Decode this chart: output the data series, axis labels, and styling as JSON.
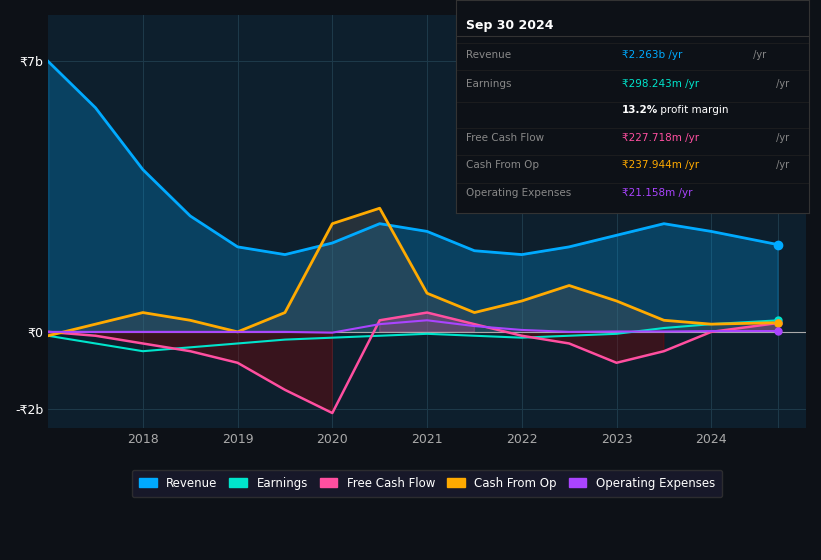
{
  "bg_color": "#0d1117",
  "plot_bg_color": "#0d1f2d",
  "grid_color": "#1e3a4a",
  "title": "Sep 30 2024",
  "ylim": [
    -2500000000.0,
    8000000000.0
  ],
  "yticks": [
    -2000000000.0,
    0,
    7000000000.0
  ],
  "ytick_labels": [
    "-₹2b",
    "₹0",
    "₹7b"
  ],
  "xtick_labels": [
    "2018",
    "2019",
    "2020",
    "2021",
    "2022",
    "2023",
    "2024"
  ],
  "legend_items": [
    {
      "label": "Revenue",
      "color": "#00aaff"
    },
    {
      "label": "Earnings",
      "color": "#00e5cc"
    },
    {
      "label": "Free Cash Flow",
      "color": "#ff4fa0"
    },
    {
      "label": "Cash From Op",
      "color": "#ffaa00"
    },
    {
      "label": "Operating Expenses",
      "color": "#aa44ff"
    }
  ],
  "info_box": {
    "title": "Sep 30 2024",
    "rows": [
      {
        "label": "Revenue",
        "value": "₹2.263b /yr",
        "value_color": "#00aaff"
      },
      {
        "label": "Earnings",
        "value": "₹298.243m /yr",
        "value_color": "#00e5cc"
      },
      {
        "label": "",
        "value": "13.2% profit margin",
        "value_color": "#ffffff",
        "bold_part": "13.2%"
      },
      {
        "label": "Free Cash Flow",
        "value": "₹227.718m /yr",
        "value_color": "#ff4fa0"
      },
      {
        "label": "Cash From Op",
        "value": "₹237.944m /yr",
        "value_color": "#ffaa00"
      },
      {
        "label": "Operating Expenses",
        "value": "₹21.158m /yr",
        "value_color": "#aa44ff"
      }
    ]
  },
  "series": {
    "x": [
      2017.0,
      2017.5,
      2018.0,
      2018.5,
      2019.0,
      2019.5,
      2020.0,
      2020.5,
      2021.0,
      2021.5,
      2022.0,
      2022.5,
      2023.0,
      2023.5,
      2024.0,
      2024.7
    ],
    "Revenue": [
      7000000000.0,
      5800000000.0,
      4200000000.0,
      3000000000.0,
      2200000000.0,
      2000000000.0,
      2300000000.0,
      2800000000.0,
      2600000000.0,
      2100000000.0,
      2000000000.0,
      2200000000.0,
      2500000000.0,
      2800000000.0,
      2600000000.0,
      2260000000.0
    ],
    "Earnings": [
      -100000000.0,
      -300000000.0,
      -500000000.0,
      -400000000.0,
      -300000000.0,
      -200000000.0,
      -150000000.0,
      -100000000.0,
      -50000000.0,
      -100000000.0,
      -150000000.0,
      -100000000.0,
      -50000000.0,
      100000000.0,
      200000000.0,
      298000000.0
    ],
    "FreeCashFlow": [
      0.0,
      -100000000.0,
      -300000000.0,
      -500000000.0,
      -800000000.0,
      -1500000000.0,
      -2100000000.0,
      300000000.0,
      500000000.0,
      200000000.0,
      -100000000.0,
      -300000000.0,
      -800000000.0,
      -500000000.0,
      0.0,
      228000000.0
    ],
    "CashFromOp": [
      -100000000.0,
      200000000.0,
      500000000.0,
      300000000.0,
      0.0,
      500000000.0,
      2800000000.0,
      3200000000.0,
      1000000000.0,
      500000000.0,
      800000000.0,
      1200000000.0,
      800000000.0,
      300000000.0,
      200000000.0,
      238000000.0
    ],
    "OperatingExpenses": [
      0.0,
      0.0,
      0.0,
      0.0,
      0.0,
      0.0,
      -20000000.0,
      200000000.0,
      300000000.0,
      150000000.0,
      50000000.0,
      0.0,
      10000000.0,
      10000000.0,
      20000000.0,
      21000000.0
    ]
  }
}
